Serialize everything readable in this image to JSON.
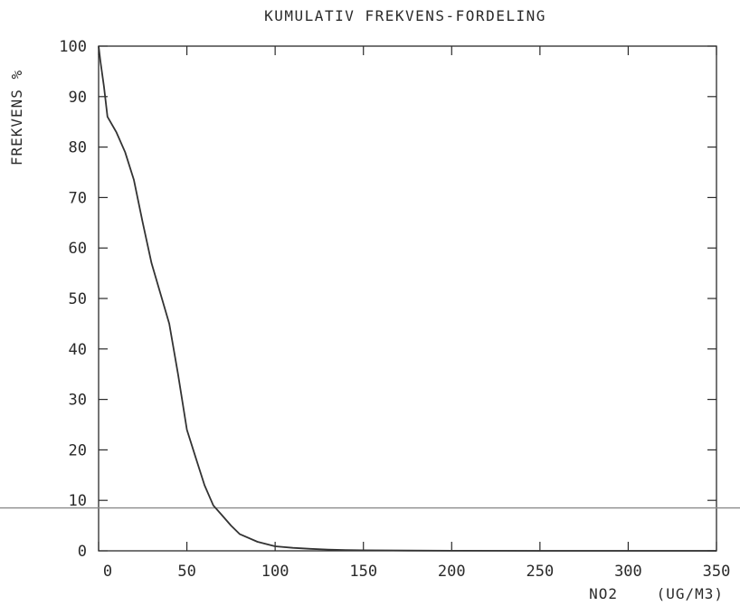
{
  "chart_data": {
    "type": "line",
    "title": "KUMULATIV FREKVENS-FORDELING",
    "xlabel": "NO2    (UG/M3)",
    "ylabel": "FREKVENS %",
    "xlim": [
      0,
      350
    ],
    "ylim": [
      0,
      100
    ],
    "xticks": [
      0,
      50,
      100,
      150,
      200,
      250,
      300,
      350
    ],
    "yticks": [
      0,
      10,
      20,
      30,
      40,
      50,
      60,
      70,
      80,
      90,
      100
    ],
    "reference_line_y": 8.5,
    "grid": false,
    "series": [
      {
        "x": [
          0,
          1,
          3,
          5,
          10,
          15,
          20,
          25,
          30,
          35,
          40,
          45,
          50,
          55,
          60,
          65,
          70,
          75,
          80,
          90,
          100,
          110,
          120,
          130,
          140,
          150,
          175,
          200,
          250,
          300,
          350
        ],
        "y": [
          100,
          97,
          92,
          86,
          83,
          79,
          73.5,
          65,
          57,
          51,
          45,
          35,
          24,
          18.5,
          13,
          9,
          7,
          5,
          3.3,
          1.8,
          0.9,
          0.6,
          0.4,
          0.25,
          0.15,
          0.1,
          0.05,
          0.02,
          0,
          0,
          0
        ]
      }
    ]
  },
  "colors": {
    "line": "#333333",
    "axis": "#2a2a2a",
    "refline": "#8a8a8a"
  }
}
